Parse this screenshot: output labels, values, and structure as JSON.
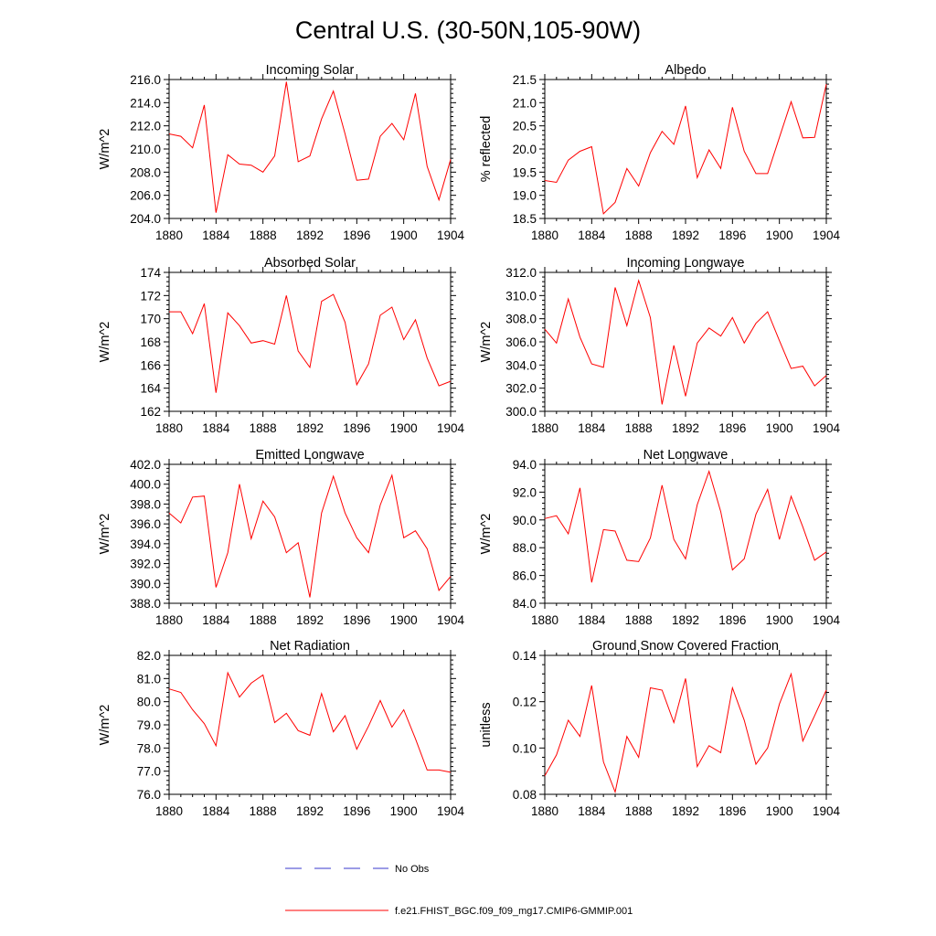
{
  "title": "Central U.S. (30-50N,105-90W)",
  "colors": {
    "series": "#ff0000",
    "obs": "#3a3acc",
    "axis": "#000000"
  },
  "legend": {
    "obs_label": "No Obs",
    "model_label": "f.e21.FHIST_BGC.f09_f09_mg17.CMIP6-GMMIP.001"
  },
  "chart_data": [
    {
      "type": "line",
      "title": "Incoming Solar",
      "ylabel": "W/m^2",
      "x": [
        1880,
        1881,
        1882,
        1883,
        1884,
        1885,
        1886,
        1887,
        1888,
        1889,
        1890,
        1891,
        1892,
        1893,
        1894,
        1895,
        1896,
        1897,
        1898,
        1899,
        1900,
        1901,
        1902,
        1903,
        1904
      ],
      "values": [
        211.3,
        211.1,
        210.1,
        213.8,
        204.5,
        209.5,
        208.7,
        208.6,
        208.0,
        209.4,
        215.8,
        208.9,
        209.4,
        212.6,
        215.0,
        211.3,
        207.3,
        207.4,
        211.1,
        212.2,
        210.8,
        214.8,
        208.5,
        205.6,
        209.1
      ],
      "ylim": [
        204,
        216
      ],
      "xlim": [
        1880,
        1904
      ],
      "yticks": [
        "204.0",
        "206.0",
        "208.0",
        "210.0",
        "212.0",
        "214.0",
        "216.0"
      ],
      "xticks": [
        "1880",
        "1884",
        "1888",
        "1892",
        "1896",
        "1900",
        "1904"
      ]
    },
    {
      "type": "line",
      "title": "Albedo",
      "ylabel": "% reflected",
      "x": [
        1880,
        1881,
        1882,
        1883,
        1884,
        1885,
        1886,
        1887,
        1888,
        1889,
        1890,
        1891,
        1892,
        1893,
        1894,
        1895,
        1896,
        1897,
        1898,
        1899,
        1900,
        1901,
        1902,
        1903,
        1904
      ],
      "values": [
        19.32,
        19.28,
        19.76,
        19.95,
        20.05,
        18.6,
        18.85,
        19.58,
        19.2,
        19.92,
        20.38,
        20.1,
        20.93,
        19.38,
        19.98,
        19.58,
        20.9,
        19.95,
        19.47,
        19.47,
        20.25,
        21.02,
        20.24,
        20.25,
        21.4
      ],
      "ylim": [
        18.5,
        21.5
      ],
      "xlim": [
        1880,
        1904
      ],
      "yticks": [
        "18.5",
        "19.0",
        "19.5",
        "20.0",
        "20.5",
        "21.0",
        "21.5"
      ],
      "xticks": [
        "1880",
        "1884",
        "1888",
        "1892",
        "1896",
        "1900",
        "1904"
      ]
    },
    {
      "type": "line",
      "title": "Absorbed Solar",
      "ylabel": "W/m^2",
      "x": [
        1880,
        1881,
        1882,
        1883,
        1884,
        1885,
        1886,
        1887,
        1888,
        1889,
        1890,
        1891,
        1892,
        1893,
        1894,
        1895,
        1896,
        1897,
        1898,
        1899,
        1900,
        1901,
        1902,
        1903,
        1904
      ],
      "values": [
        170.6,
        170.6,
        168.7,
        171.3,
        163.6,
        170.5,
        169.4,
        167.9,
        168.1,
        167.8,
        172.0,
        167.2,
        165.8,
        171.5,
        172.1,
        169.7,
        164.3,
        166.1,
        170.3,
        171.0,
        168.2,
        169.9,
        166.6,
        164.2,
        164.6
      ],
      "ylim": [
        162,
        174
      ],
      "xlim": [
        1880,
        1904
      ],
      "yticks": [
        "162",
        "164",
        "166",
        "168",
        "170",
        "172",
        "174"
      ],
      "xticks": [
        "1880",
        "1884",
        "1888",
        "1892",
        "1896",
        "1900",
        "1904"
      ]
    },
    {
      "type": "line",
      "title": "Incoming Longwave",
      "ylabel": "W/m^2",
      "x": [
        1880,
        1881,
        1882,
        1883,
        1884,
        1885,
        1886,
        1887,
        1888,
        1889,
        1890,
        1891,
        1892,
        1893,
        1894,
        1895,
        1896,
        1897,
        1898,
        1899,
        1900,
        1901,
        1902,
        1903,
        1904
      ],
      "values": [
        307.1,
        305.9,
        309.7,
        306.4,
        304.1,
        303.8,
        310.7,
        307.4,
        311.3,
        308.1,
        300.6,
        305.7,
        301.3,
        305.9,
        307.2,
        306.5,
        308.1,
        305.9,
        307.6,
        308.6,
        306.1,
        303.7,
        303.9,
        302.2,
        303.1
      ],
      "ylim": [
        300,
        312
      ],
      "xlim": [
        1880,
        1904
      ],
      "yticks": [
        "300.0",
        "302.0",
        "304.0",
        "306.0",
        "308.0",
        "310.0",
        "312.0"
      ],
      "xticks": [
        "1880",
        "1884",
        "1888",
        "1892",
        "1896",
        "1900",
        "1904"
      ]
    },
    {
      "type": "line",
      "title": "Emitted Longwave",
      "ylabel": "W/m^2",
      "x": [
        1880,
        1881,
        1882,
        1883,
        1884,
        1885,
        1886,
        1887,
        1888,
        1889,
        1890,
        1891,
        1892,
        1893,
        1894,
        1895,
        1896,
        1897,
        1898,
        1899,
        1900,
        1901,
        1902,
        1903,
        1904
      ],
      "values": [
        397.1,
        396.1,
        398.7,
        398.8,
        389.6,
        393.1,
        400.0,
        394.5,
        398.3,
        396.7,
        393.1,
        394.1,
        388.6,
        397.1,
        400.8,
        397.1,
        394.6,
        393.1,
        397.9,
        400.9,
        394.6,
        395.3,
        393.5,
        389.3,
        390.7
      ],
      "ylim": [
        388,
        402
      ],
      "xlim": [
        1880,
        1904
      ],
      "yticks": [
        "388.0",
        "390.0",
        "392.0",
        "394.0",
        "396.0",
        "398.0",
        "400.0",
        "402.0"
      ],
      "xticks": [
        "1880",
        "1884",
        "1888",
        "1892",
        "1896",
        "1900",
        "1904"
      ]
    },
    {
      "type": "line",
      "title": "Net Longwave",
      "ylabel": "W/m^2",
      "x": [
        1880,
        1881,
        1882,
        1883,
        1884,
        1885,
        1886,
        1887,
        1888,
        1889,
        1890,
        1891,
        1892,
        1893,
        1894,
        1895,
        1896,
        1897,
        1898,
        1899,
        1900,
        1901,
        1902,
        1903,
        1904
      ],
      "values": [
        90.1,
        90.3,
        89.0,
        92.3,
        85.5,
        89.3,
        89.2,
        87.1,
        87.0,
        88.7,
        92.5,
        88.6,
        87.2,
        91.1,
        93.5,
        90.6,
        86.4,
        87.2,
        90.4,
        92.2,
        88.6,
        91.7,
        89.5,
        87.1,
        87.7
      ],
      "ylim": [
        84,
        94
      ],
      "xlim": [
        1880,
        1904
      ],
      "yticks": [
        "84.0",
        "86.0",
        "88.0",
        "90.0",
        "92.0",
        "94.0"
      ],
      "xticks": [
        "1880",
        "1884",
        "1888",
        "1892",
        "1896",
        "1900",
        "1904"
      ]
    },
    {
      "type": "line",
      "title": "Net Radiation",
      "ylabel": "W/m^2",
      "x": [
        1880,
        1881,
        1882,
        1883,
        1884,
        1885,
        1886,
        1887,
        1888,
        1889,
        1890,
        1891,
        1892,
        1893,
        1894,
        1895,
        1896,
        1897,
        1898,
        1899,
        1900,
        1901,
        1902,
        1903,
        1904
      ],
      "values": [
        80.55,
        80.4,
        79.65,
        79.05,
        78.1,
        81.25,
        80.2,
        80.8,
        81.15,
        79.1,
        79.5,
        78.75,
        78.55,
        80.35,
        78.7,
        79.4,
        77.95,
        78.95,
        80.05,
        78.9,
        79.65,
        78.4,
        77.05,
        77.05,
        76.95
      ],
      "ylim": [
        76,
        82
      ],
      "xlim": [
        1880,
        1904
      ],
      "yticks": [
        "76.0",
        "77.0",
        "78.0",
        "79.0",
        "80.0",
        "81.0",
        "82.0"
      ],
      "xticks": [
        "1880",
        "1884",
        "1888",
        "1892",
        "1896",
        "1900",
        "1904"
      ]
    },
    {
      "type": "line",
      "title": "Ground Snow Covered Fraction",
      "ylabel": "unitless",
      "x": [
        1880,
        1881,
        1882,
        1883,
        1884,
        1885,
        1886,
        1887,
        1888,
        1889,
        1890,
        1891,
        1892,
        1893,
        1894,
        1895,
        1896,
        1897,
        1898,
        1899,
        1900,
        1901,
        1902,
        1903,
        1904
      ],
      "values": [
        0.088,
        0.097,
        0.112,
        0.105,
        0.127,
        0.094,
        0.081,
        0.105,
        0.096,
        0.126,
        0.125,
        0.111,
        0.13,
        0.092,
        0.101,
        0.098,
        0.126,
        0.112,
        0.093,
        0.1,
        0.119,
        0.132,
        0.103,
        0.114,
        0.125
      ],
      "ylim": [
        0.08,
        0.14
      ],
      "xlim": [
        1880,
        1904
      ],
      "yticks": [
        "0.08",
        "0.10",
        "0.12",
        "0.14"
      ],
      "xticks": [
        "1880",
        "1884",
        "1888",
        "1892",
        "1896",
        "1900",
        "1904"
      ]
    }
  ]
}
